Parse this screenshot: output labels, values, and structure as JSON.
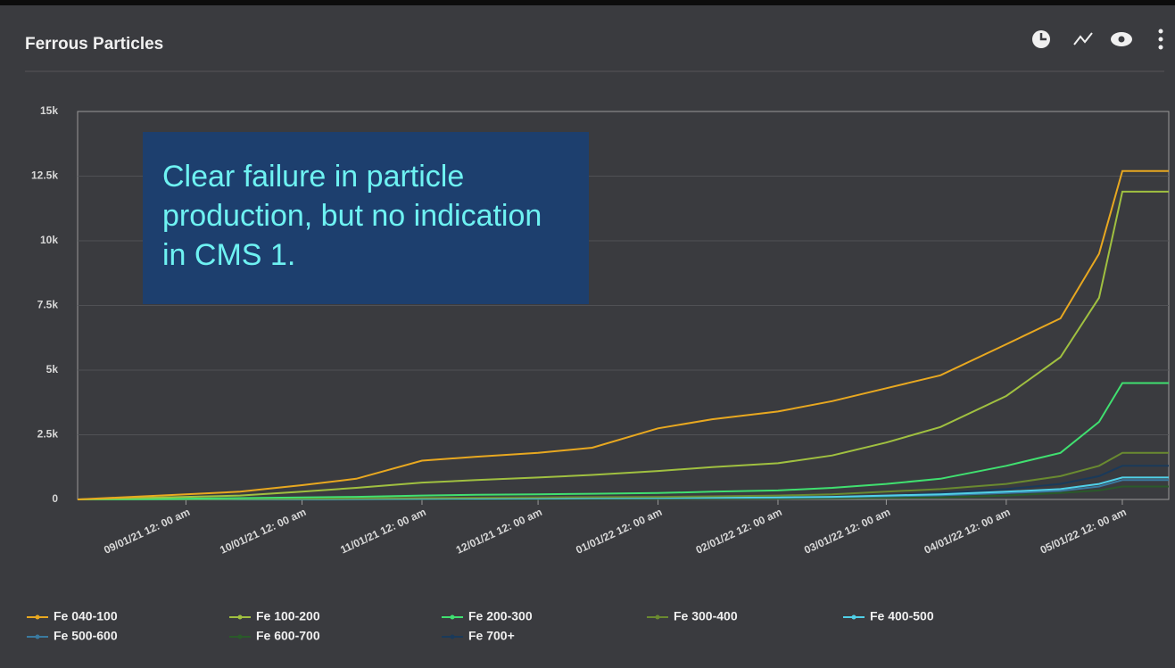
{
  "chart_data": {
    "type": "line",
    "title": "Ferrous Particles",
    "annotation": "Clear failure in particle production, but no indication in CMS 1.",
    "x": [
      "08/04/21",
      "08/15/21",
      "09/01/21",
      "09/15/21",
      "10/01/21",
      "10/15/21",
      "11/01/21",
      "11/15/21",
      "12/01/21",
      "12/15/21",
      "01/01/22",
      "01/15/22",
      "02/01/22",
      "02/15/22",
      "03/01/22",
      "03/15/22",
      "04/01/22",
      "04/15/22",
      "04/25/22",
      "05/01/22",
      "05/13/22"
    ],
    "xlim": [
      "08/04/21",
      "05/13/22"
    ],
    "xticks": [
      {
        "value": "09/01/21",
        "label": "09/01/21 12: 00 am"
      },
      {
        "value": "10/01/21",
        "label": "10/01/21 12: 00 am"
      },
      {
        "value": "11/01/21",
        "label": "11/01/21 12: 00 am"
      },
      {
        "value": "12/01/21",
        "label": "12/01/21 12: 00 am"
      },
      {
        "value": "01/01/22",
        "label": "01/01/22 12: 00 am"
      },
      {
        "value": "02/01/22",
        "label": "02/01/22 12: 00 am"
      },
      {
        "value": "03/01/22",
        "label": "03/01/22 12: 00 am"
      },
      {
        "value": "04/01/22",
        "label": "04/01/22 12: 00 am"
      },
      {
        "value": "05/01/22",
        "label": "05/01/22 12: 00 am"
      }
    ],
    "ylim": [
      0,
      15000
    ],
    "yticks": [
      0,
      {
        "value": 2500,
        "label": "2.5k"
      },
      {
        "value": 5000,
        "label": "5k"
      },
      {
        "value": 7500,
        "label": "7.5k"
      },
      {
        "value": 10000,
        "label": "10k"
      },
      {
        "value": 12500,
        "label": "12.5k"
      },
      {
        "value": 15000,
        "label": "15k"
      }
    ],
    "grid": true,
    "legend": "bottom",
    "series": [
      {
        "name": "Fe 040-100",
        "color": "#e8a820",
        "values": [
          0,
          80,
          200,
          300,
          550,
          800,
          1500,
          1650,
          1800,
          2000,
          2750,
          3100,
          3400,
          3800,
          4300,
          4800,
          6000,
          7000,
          9500,
          12700,
          12700
        ]
      },
      {
        "name": "Fe 100-200",
        "color": "#a0c040",
        "values": [
          0,
          40,
          100,
          150,
          300,
          450,
          650,
          750,
          850,
          950,
          1100,
          1250,
          1400,
          1700,
          2200,
          2800,
          4000,
          5500,
          7800,
          11900,
          11900
        ]
      },
      {
        "name": "Fe 200-300",
        "color": "#40e070",
        "values": [
          0,
          10,
          30,
          50,
          80,
          100,
          150,
          180,
          200,
          220,
          250,
          300,
          350,
          450,
          600,
          800,
          1300,
          1800,
          3000,
          4500,
          4500
        ]
      },
      {
        "name": "Fe 300-400",
        "color": "#6a8a30",
        "values": [
          0,
          5,
          10,
          20,
          30,
          40,
          60,
          70,
          80,
          90,
          100,
          120,
          150,
          200,
          300,
          400,
          600,
          900,
          1300,
          1800,
          1800
        ]
      },
      {
        "name": "Fe 400-500",
        "color": "#50d0e8",
        "values": [
          0,
          2,
          5,
          10,
          15,
          20,
          30,
          35,
          40,
          50,
          60,
          70,
          80,
          100,
          150,
          200,
          300,
          400,
          600,
          850,
          850
        ]
      },
      {
        "name": "Fe 500-600",
        "color": "#3a7aa0",
        "values": [
          0,
          2,
          4,
          8,
          12,
          15,
          25,
          30,
          35,
          40,
          50,
          60,
          70,
          90,
          120,
          160,
          250,
          330,
          500,
          750,
          750
        ]
      },
      {
        "name": "Fe 600-700",
        "color": "#2a5a2a",
        "values": [
          0,
          1,
          2,
          4,
          6,
          8,
          10,
          12,
          15,
          18,
          20,
          25,
          30,
          40,
          60,
          80,
          150,
          250,
          350,
          500,
          500
        ]
      },
      {
        "name": "Fe 700+",
        "color": "#1a3a5a",
        "values": [
          0,
          2,
          5,
          8,
          12,
          16,
          25,
          30,
          35,
          40,
          50,
          60,
          80,
          100,
          150,
          250,
          400,
          600,
          900,
          1300,
          1300
        ]
      }
    ]
  }
}
